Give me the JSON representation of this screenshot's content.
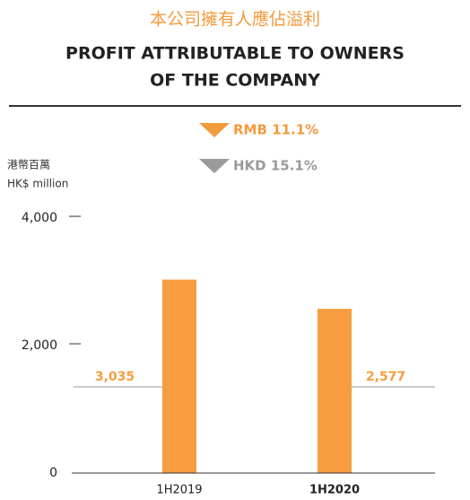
{
  "chart_data": {
    "type": "bar",
    "title_zh": "本公司擁有人應佔溢利",
    "title": [
      "PROFIT ATTRIBUTABLE TO OWNERS",
      "OF THE COMPANY"
    ],
    "annotations": [
      {
        "text": "RMB 11.1%",
        "color": "#f39a3c"
      },
      {
        "text": "HKD 15.1%",
        "color": "#9a9a9a"
      }
    ],
    "y_label": [
      "港幣百萬",
      "HK$ million"
    ],
    "categories": [
      "1H2019",
      "1H2020"
    ],
    "values": [
      3035,
      2577
    ],
    "value_labels": [
      "3,035",
      "2,577"
    ],
    "color": "#f59d3f",
    "ylim": [
      0,
      4000
    ],
    "yticks": [
      0,
      {
        "value": 2000,
        "label": "2,000"
      },
      {
        "value": 4000,
        "label": "4,000"
      }
    ]
  }
}
